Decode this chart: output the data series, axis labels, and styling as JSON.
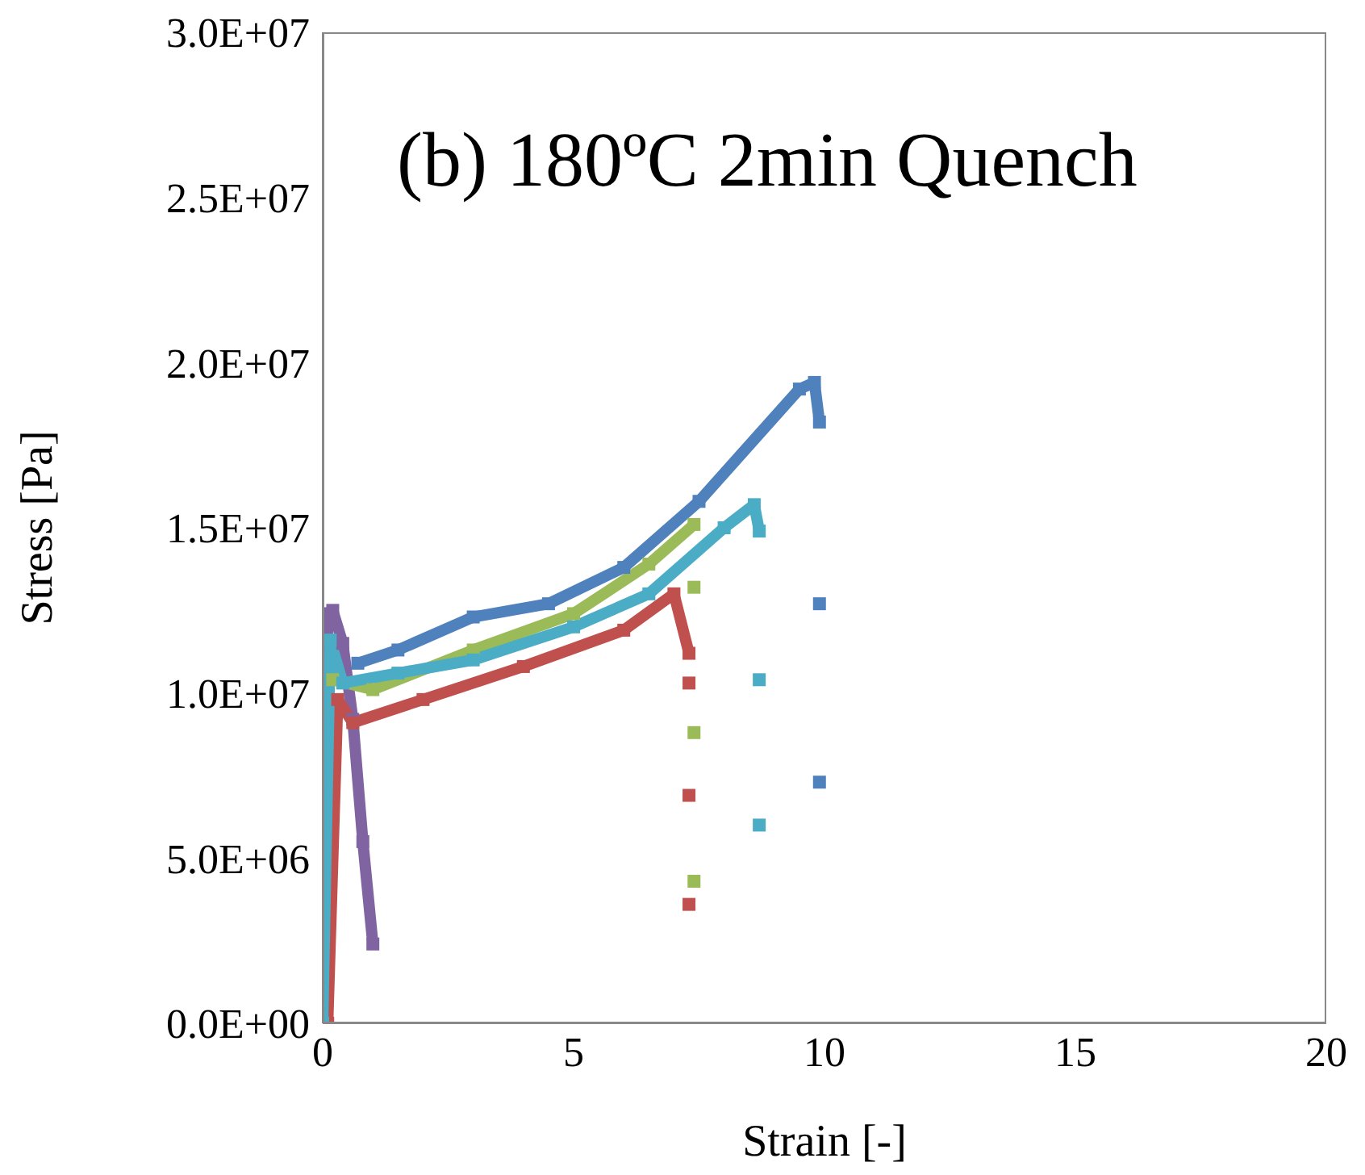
{
  "chart_data": {
    "type": "line",
    "title": "(b) 180ºC 2min Quench",
    "xlabel": "Strain [-]",
    "ylabel": "Stress [Pa]",
    "xlim": [
      0,
      20
    ],
    "xticks": [
      0,
      5,
      10,
      15,
      20
    ],
    "ylim": [
      0,
      30000000
    ],
    "yticks": [
      {
        "value": 0,
        "label": "0.0E+00"
      },
      {
        "value": 5000000,
        "label": "5.0E+06"
      },
      {
        "value": 10000000,
        "label": "1.0E+07"
      },
      {
        "value": 15000000,
        "label": "1.5E+07"
      },
      {
        "value": 20000000,
        "label": "2.0E+07"
      },
      {
        "value": 25000000,
        "label": "2.5E+07"
      },
      {
        "value": 30000000,
        "label": "3.0E+07"
      }
    ],
    "marker": "square",
    "line_style": "solid",
    "series": [
      {
        "color": "#8064a2",
        "x": [
          0,
          0.1,
          0.2,
          0.4,
          0.6,
          0.8,
          1.0
        ],
        "values": [
          0,
          12400000,
          12500000,
          11500000,
          9200000,
          5500000,
          2400000
        ]
      },
      {
        "color": "#4f81bd",
        "x": [
          0.7,
          1.5,
          3,
          4.5,
          6,
          7.5,
          9.5,
          9.8,
          9.9
        ],
        "values": [
          10900000,
          11300000,
          12300000,
          12700000,
          13800000,
          15800000,
          19200000,
          19400000,
          18200000
        ]
      },
      {
        "type": "scatter",
        "color": "#4f81bd",
        "x": [
          9.9,
          9.9
        ],
        "values": [
          12700000,
          7300000
        ]
      },
      {
        "color": "#c0504d",
        "x": [
          0.1,
          0.3,
          0.6,
          2,
          4,
          6,
          7,
          7.3
        ],
        "values": [
          0,
          9800000,
          9100000,
          9800000,
          10800000,
          11900000,
          13000000,
          11200000
        ]
      },
      {
        "type": "scatter",
        "color": "#c0504d",
        "x": [
          7.3,
          7.3,
          7.3
        ],
        "values": [
          10300000,
          6900000,
          3600000
        ]
      },
      {
        "color": "#9bbb59",
        "x": [
          0.2,
          1,
          3,
          5,
          6.5,
          7.4
        ],
        "values": [
          10400000,
          10100000,
          11300000,
          12400000,
          13900000,
          15100000
        ]
      },
      {
        "type": "scatter",
        "color": "#9bbb59",
        "x": [
          7.4,
          7.4,
          7.4
        ],
        "values": [
          13200000,
          8800000,
          4300000
        ]
      },
      {
        "color": "#4bacc6",
        "x": [
          0,
          0.15,
          0.4,
          1.5,
          3,
          5,
          6.5,
          8,
          8.6,
          8.7
        ],
        "values": [
          0,
          11600000,
          10300000,
          10600000,
          11000000,
          12000000,
          13000000,
          15000000,
          15700000,
          14900000
        ]
      },
      {
        "type": "scatter",
        "color": "#4bacc6",
        "x": [
          8.7,
          8.7
        ],
        "values": [
          10400000,
          6000000
        ]
      }
    ]
  }
}
